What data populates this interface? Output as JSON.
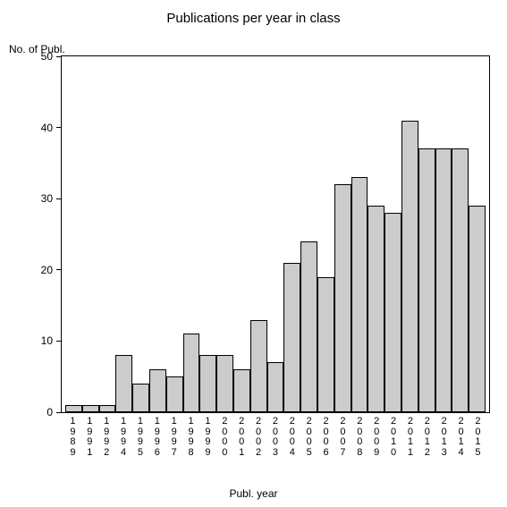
{
  "chart": {
    "type": "bar",
    "title": "Publications per year in class",
    "title_fontsize": 15,
    "y_axis_label": "No. of Publ.",
    "x_axis_label": "Publ. year",
    "label_fontsize": 12,
    "background_color": "#ffffff",
    "plot_border_color": "#000000",
    "bar_fill_color": "#cccccc",
    "bar_border_color": "#000000",
    "text_color": "#000000",
    "ylim": [
      0,
      50
    ],
    "ytick_step": 10,
    "yticks": [
      0,
      10,
      20,
      30,
      40,
      50
    ],
    "categories": [
      "1989",
      "1991",
      "1992",
      "1994",
      "1995",
      "1996",
      "1997",
      "1998",
      "1999",
      "2000",
      "2001",
      "2002",
      "2003",
      "2004",
      "2005",
      "2006",
      "2007",
      "2008",
      "2009",
      "2010",
      "2011",
      "2012",
      "2013",
      "2014",
      "2015"
    ],
    "values": [
      1,
      1,
      1,
      8,
      4,
      6,
      5,
      11,
      8,
      8,
      6,
      13,
      7,
      21,
      24,
      19,
      32,
      33,
      29,
      28,
      41,
      37,
      37,
      37,
      29
    ],
    "bar_width": 1.0,
    "x_tick_fontsize": 11,
    "y_tick_fontsize": 12
  }
}
